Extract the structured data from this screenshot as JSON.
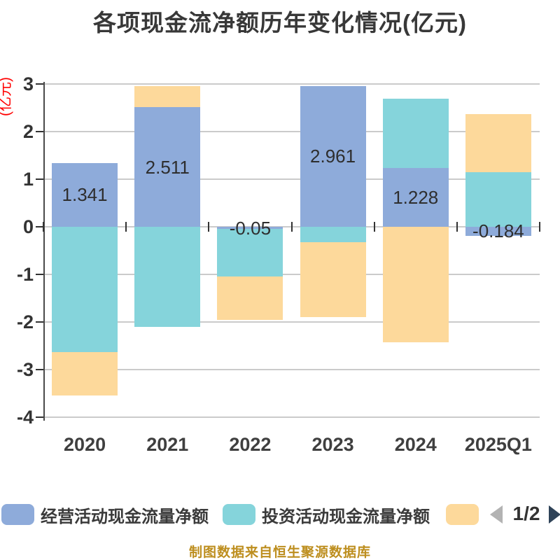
{
  "watermark": "制图数据来自恒生聚源数据库",
  "legend": {
    "items": [
      {
        "label": "经营活动现金流量净额",
        "color": "#8eabda"
      },
      {
        "label": "投资活动现金流量净额",
        "color": "#85d4db"
      },
      {
        "label": "",
        "color": "#fdd99b"
      }
    ],
    "pager": {
      "current": "1/2",
      "prev_color": "#b3b3b3",
      "next_color": "#2f4358"
    }
  },
  "chart_data": {
    "type": "bar",
    "stacked": true,
    "title": "各项现金流净额历年变化情况(亿元)",
    "xlabel": "",
    "ylabel": "(亿元)",
    "categories": [
      "2020",
      "2021",
      "2022",
      "2023",
      "2024",
      "2025Q1"
    ],
    "series": [
      {
        "name": "经营活动现金流量净额",
        "color": "#8eabda",
        "values": [
          1.341,
          2.511,
          -0.05,
          2.961,
          1.228,
          -0.184
        ],
        "labels": [
          "1.341",
          "2.511",
          "-0.05",
          "2.961",
          "1.228",
          "-0.184"
        ]
      },
      {
        "name": "投资活动现金流量净额",
        "color": "#85d4db",
        "values": [
          -2.63,
          -2.1,
          -0.99,
          -0.33,
          1.47,
          1.14
        ]
      },
      {
        "name": "",
        "color": "#fdd99b",
        "values": [
          -0.92,
          0.45,
          -0.91,
          -1.56,
          -2.43,
          1.23
        ]
      }
    ],
    "yticks": [
      3,
      2,
      1,
      0,
      -1,
      -2,
      -3,
      -4
    ],
    "ylim": [
      -4,
      3
    ],
    "grid": true,
    "legend_position": "bottom",
    "grid_color": "#cbcbcb",
    "axis_color": "#4a4a4a",
    "tick_label_color": "#333333",
    "value_label_color": "#2e2e2e",
    "unit_label_color": "#ff0000"
  }
}
